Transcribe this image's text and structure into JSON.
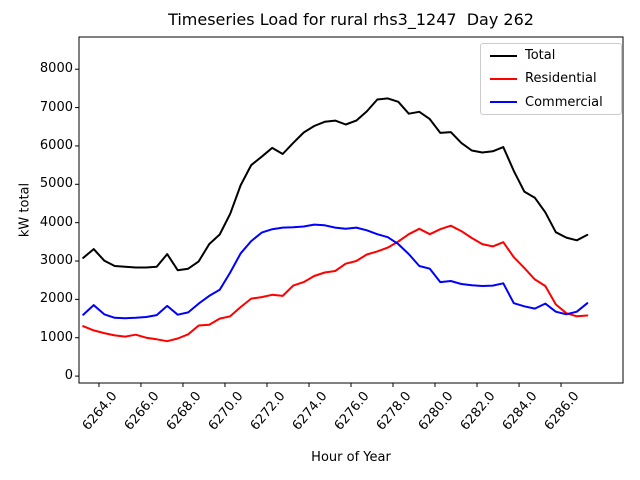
{
  "title": "Timeseries Load for rural rhs3_1247  Day 262",
  "chart_data": {
    "type": "line",
    "title": "Timeseries Load for rural rhs3_1247  Day 262",
    "xlabel": "Hour of Year",
    "ylabel": "kW total",
    "xlim": [
      6263.05,
      6288.95
    ],
    "ylim": [
      -180,
      8840
    ],
    "grid": false,
    "legend_position": "upper right",
    "x_ticks": [
      6264,
      6266,
      6268,
      6270,
      6272,
      6274,
      6276,
      6278,
      6280,
      6282,
      6284,
      6286
    ],
    "x_tick_labels": [
      "6264.0",
      "6266.0",
      "6268.0",
      "6270.0",
      "6272.0",
      "6274.0",
      "6276.0",
      "6278.0",
      "6280.0",
      "6282.0",
      "6284.0",
      "6286.0"
    ],
    "y_ticks": [
      0,
      1000,
      2000,
      3000,
      4000,
      5000,
      6000,
      7000,
      8000
    ],
    "y_tick_labels": [
      "0",
      "1000",
      "2000",
      "3000",
      "4000",
      "5000",
      "6000",
      "7000",
      "8000"
    ],
    "x": [
      6263.25,
      6263.75,
      6264.25,
      6264.75,
      6265.25,
      6265.75,
      6266.25,
      6266.75,
      6267.25,
      6267.75,
      6268.25,
      6268.75,
      6269.25,
      6269.75,
      6270.25,
      6270.75,
      6271.25,
      6271.75,
      6272.25,
      6272.75,
      6273.25,
      6273.75,
      6274.25,
      6274.75,
      6275.25,
      6275.75,
      6276.25,
      6276.75,
      6277.25,
      6277.75,
      6278.25,
      6278.75,
      6279.25,
      6279.75,
      6280.25,
      6280.75,
      6281.25,
      6281.75,
      6282.25,
      6282.75,
      6283.25,
      6283.75,
      6284.25,
      6284.75,
      6285.25,
      6285.75,
      6286.25,
      6286.75,
      6287.25
    ],
    "series": [
      {
        "name": "Total",
        "color": "#000000",
        "values": [
          3080,
          3310,
          3010,
          2870,
          2850,
          2830,
          2830,
          2850,
          3180,
          2760,
          2800,
          2990,
          3440,
          3690,
          4230,
          4980,
          5500,
          5720,
          5950,
          5790,
          6080,
          6350,
          6520,
          6630,
          6660,
          6560,
          6660,
          6900,
          7210,
          7240,
          7150,
          6840,
          6890,
          6700,
          6340,
          6360,
          6080,
          5880,
          5830,
          5860,
          5970,
          5350,
          4810,
          4650,
          4270,
          3750,
          3610,
          3540,
          3680
        ]
      },
      {
        "name": "Residential",
        "color": "#ff0000",
        "values": [
          1300,
          1190,
          1120,
          1060,
          1030,
          1080,
          1000,
          960,
          910,
          980,
          1090,
          1320,
          1340,
          1500,
          1560,
          1800,
          2020,
          2060,
          2120,
          2090,
          2360,
          2450,
          2610,
          2700,
          2740,
          2930,
          3000,
          3170,
          3250,
          3350,
          3510,
          3700,
          3840,
          3700,
          3830,
          3920,
          3780,
          3600,
          3440,
          3380,
          3490,
          3100,
          2820,
          2520,
          2350,
          1870,
          1640,
          1560,
          1580
        ]
      },
      {
        "name": "Commercial",
        "color": "#0000ff",
        "values": [
          1600,
          1850,
          1610,
          1520,
          1510,
          1520,
          1540,
          1590,
          1830,
          1600,
          1660,
          1890,
          2090,
          2250,
          2700,
          3200,
          3520,
          3740,
          3830,
          3870,
          3880,
          3900,
          3950,
          3930,
          3870,
          3840,
          3870,
          3800,
          3700,
          3620,
          3440,
          3180,
          2870,
          2800,
          2450,
          2480,
          2400,
          2370,
          2350,
          2360,
          2420,
          1900,
          1820,
          1760,
          1890,
          1680,
          1610,
          1680,
          1900
        ]
      }
    ]
  }
}
